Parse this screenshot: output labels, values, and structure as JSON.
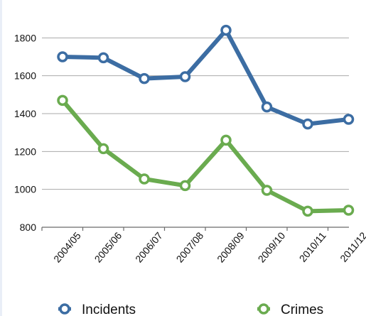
{
  "chart_data": {
    "type": "line",
    "title": "",
    "xlabel": "",
    "ylabel": "",
    "categories": [
      "2004/05",
      "2005/06",
      "2006/07",
      "2007/08",
      "2008/09",
      "2009/10",
      "2010/11",
      "2011/12"
    ],
    "y_ticks": [
      "800",
      "1000",
      "1200",
      "1400",
      "1600",
      "1800"
    ],
    "ylim": [
      800,
      2000
    ],
    "grid": true,
    "legend_position": "bottom",
    "series": [
      {
        "name": "Incidents",
        "color": "#3c6da3",
        "values": [
          1700,
          1695,
          1585,
          1595,
          1840,
          1435,
          1345,
          1370
        ]
      },
      {
        "name": "Crimes",
        "color": "#6aab4f",
        "values": [
          1470,
          1215,
          1055,
          1020,
          1260,
          995,
          885,
          890
        ]
      }
    ]
  }
}
